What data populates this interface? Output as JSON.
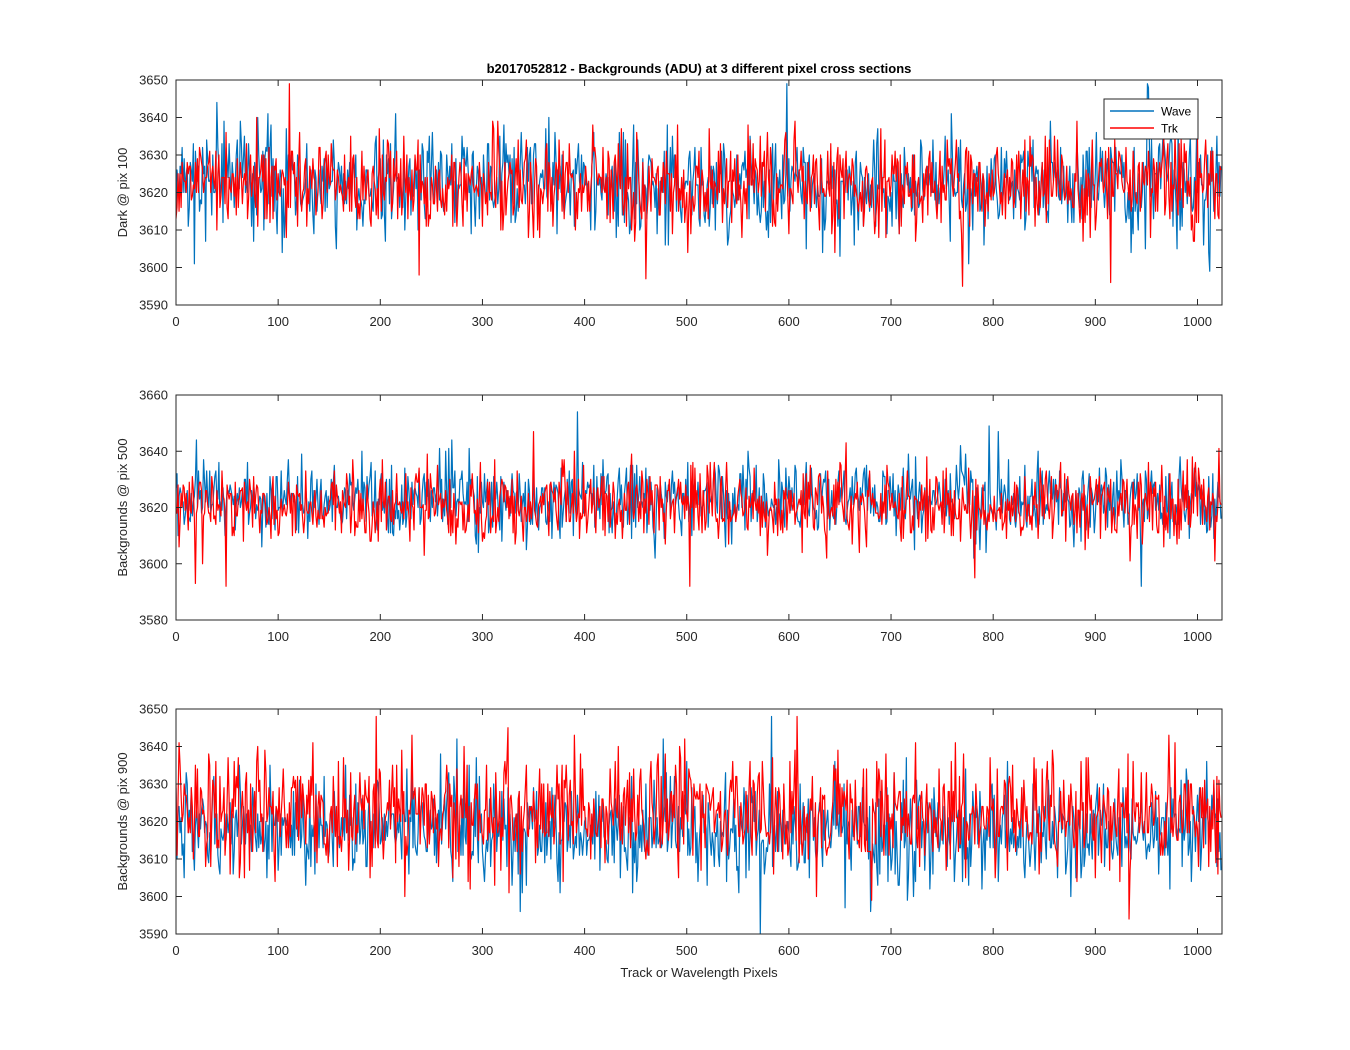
{
  "figure": {
    "title": "b2017052812 - Backgrounds (ADU) at 3 different pixel cross sections",
    "xlabel": "Track or Wavelength Pixels"
  },
  "colors": {
    "wave": "#0072BD",
    "trk": "#FF0000",
    "axes": "#262626",
    "background": "#ffffff"
  },
  "chart_data": [
    {
      "type": "line",
      "ylabel": "Dark @ pix 100",
      "xlim": [
        0,
        1024
      ],
      "ylim": [
        3590,
        3650
      ],
      "xticks": [
        0,
        100,
        200,
        300,
        400,
        500,
        600,
        700,
        800,
        900,
        1000
      ],
      "yticks": [
        3590,
        3600,
        3610,
        3620,
        3630,
        3640,
        3650
      ],
      "grid": false,
      "legend": {
        "placement": "top-right",
        "entries": [
          "Wave",
          "Trk"
        ]
      },
      "series": [
        {
          "name": "Wave",
          "color": "#0072BD",
          "n": 1024,
          "mean": 3623,
          "std": 7,
          "extremes": [
            [
              18,
              3601
            ],
            [
              40,
              3644
            ],
            [
              598,
              3649
            ],
            [
              952,
              3648
            ],
            [
              776,
              3601
            ],
            [
              1012,
              3599
            ]
          ]
        },
        {
          "name": "Trk",
          "color": "#FF0000",
          "n": 1024,
          "mean": 3622,
          "std": 6.5,
          "extremes": [
            [
              111,
              3649
            ],
            [
              238,
              3598
            ],
            [
              770,
              3595
            ],
            [
              915,
              3596
            ],
            [
              460,
              3597
            ],
            [
              1022,
              3627
            ]
          ]
        }
      ]
    },
    {
      "type": "line",
      "ylabel": "Backgrounds @ pix 500",
      "xlim": [
        0,
        1024
      ],
      "ylim": [
        3580,
        3660
      ],
      "xticks": [
        0,
        100,
        200,
        300,
        400,
        500,
        600,
        700,
        800,
        900,
        1000
      ],
      "yticks": [
        3580,
        3600,
        3620,
        3640,
        3660
      ],
      "grid": false,
      "series": [
        {
          "name": "Wave",
          "color": "#0072BD",
          "n": 1024,
          "mean": 3623,
          "std": 7,
          "extremes": [
            [
              393,
              3654
            ],
            [
              796,
              3649
            ],
            [
              945,
              3592
            ],
            [
              270,
              3644
            ]
          ]
        },
        {
          "name": "Trk",
          "color": "#FF0000",
          "n": 1024,
          "mean": 3621,
          "std": 7,
          "extremes": [
            [
              19,
              3593
            ],
            [
              49,
              3592
            ],
            [
              350,
              3647
            ],
            [
              782,
              3595
            ],
            [
              1017,
              3601
            ],
            [
              1021,
              3641
            ]
          ]
        }
      ]
    },
    {
      "type": "line",
      "ylabel": "Backgrounds @ pix 900",
      "xlim": [
        0,
        1024
      ],
      "ylim": [
        3590,
        3650
      ],
      "xticks": [
        0,
        100,
        200,
        300,
        400,
        500,
        600,
        700,
        800,
        900,
        1000
      ],
      "yticks": [
        3590,
        3600,
        3610,
        3620,
        3630,
        3640,
        3650
      ],
      "grid": false,
      "series": [
        {
          "name": "Wave",
          "color": "#0072BD",
          "n": 1024,
          "mean": 3618,
          "std": 7,
          "extremes": [
            [
              572,
              3590
            ],
            [
              583,
              3648
            ],
            [
              337,
              3596
            ],
            [
              680,
              3596
            ]
          ]
        },
        {
          "name": "Trk",
          "color": "#FF0000",
          "n": 1024,
          "mean": 3622,
          "std": 7.5,
          "extremes": [
            [
              196,
              3648
            ],
            [
              608,
              3648
            ],
            [
              390,
              3643
            ],
            [
              1020,
              3606
            ]
          ]
        }
      ]
    }
  ]
}
